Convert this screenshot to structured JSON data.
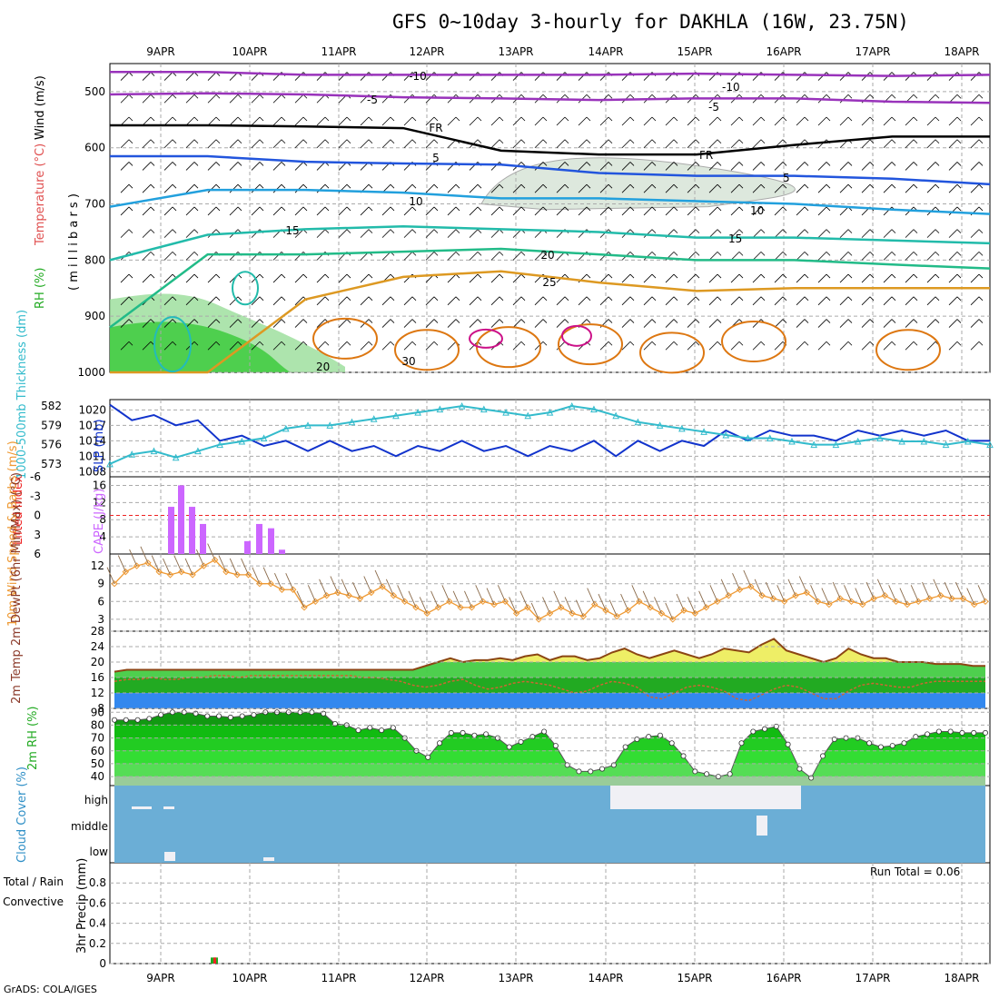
{
  "title": "GFS 0~10day 3-hourly for DAKHLA (16W, 23.75N)",
  "footer": "GrADS: COLA/IGES",
  "colors": {
    "grid": "#aaaaaa",
    "wind": "#000000",
    "rh_dark": "#22cc22",
    "rh_light": "#99dd99",
    "cape": "#cc66ff",
    "lifted": "#ee2222",
    "slp": "#1133cc",
    "thick": "#33bbcc",
    "wind10": "#ee9933",
    "barb10": "#8a6a4a",
    "temp2m": "#8b4513",
    "dewpt": "#cc6633",
    "cloud_bg": "#6baed6",
    "cloud_fill": "#f0f0f5"
  },
  "chart_data": [
    {
      "type": "heatmap",
      "panel": "upper-air cross-section",
      "ylabel_parts": [
        "RH (%)",
        "Temperature (°C)",
        "Wind (m/s)"
      ],
      "ylabel2": "( m i l l i b a r s )",
      "x_ticks": [
        "9APR",
        "10APR",
        "11APR",
        "12APR",
        "13APR",
        "14APR",
        "15APR",
        "16APR",
        "17APR",
        "18APR"
      ],
      "y_ticks": [
        500,
        600,
        700,
        800,
        900,
        1000
      ],
      "ylim": [
        1000,
        450
      ],
      "isotherm_labels": [
        {
          "text": "-10",
          "color": "#9933bb"
        },
        {
          "text": "-5",
          "color": "#9933bb"
        },
        {
          "text": "FR",
          "color": "#000000"
        },
        {
          "text": "5",
          "color": "#2255dd"
        },
        {
          "text": "10",
          "color": "#22a0dd"
        },
        {
          "text": "15",
          "color": "#22bbaa"
        },
        {
          "text": "20",
          "color": "#22bb88"
        },
        {
          "text": "25",
          "color": "#dd9922"
        },
        {
          "text": "30",
          "color": "#dd7711"
        }
      ],
      "isotherms": [
        {
          "temp": -10,
          "p": [
            465,
            465,
            470,
            470,
            470,
            470,
            468,
            470,
            472,
            470
          ]
        },
        {
          "temp": -5,
          "p": [
            505,
            503,
            505,
            510,
            512,
            515,
            512,
            512,
            518,
            520
          ]
        },
        {
          "temp": 0,
          "p": [
            560,
            560,
            562,
            565,
            605,
            612,
            612,
            595,
            580,
            580
          ]
        },
        {
          "temp": 5,
          "p": [
            615,
            615,
            625,
            628,
            630,
            645,
            650,
            650,
            655,
            665
          ]
        },
        {
          "temp": 10,
          "p": [
            705,
            675,
            675,
            680,
            690,
            690,
            695,
            700,
            710,
            718
          ]
        },
        {
          "temp": 15,
          "p": [
            800,
            755,
            745,
            740,
            745,
            750,
            760,
            760,
            765,
            770
          ]
        },
        {
          "temp": 20,
          "p": [
            920,
            790,
            790,
            785,
            780,
            790,
            800,
            800,
            808,
            815
          ]
        },
        {
          "temp": 25,
          "p": [
            1000,
            1000,
            870,
            830,
            820,
            840,
            855,
            850,
            850,
            850
          ]
        }
      ]
    },
    {
      "type": "line",
      "panel": "SLP and thickness",
      "ylabel_left": "1000-500mb Thickness (dm)",
      "ylabel_right": "SLP (mb)",
      "y_ticks_left": [
        573,
        576,
        579,
        582
      ],
      "y_ticks_right": [
        1008,
        1011,
        1014,
        1017,
        1020
      ],
      "series": [
        {
          "values": [
            1021,
            1018,
            1019,
            1017,
            1018,
            1014,
            1015,
            1013,
            1014,
            1012,
            1014,
            1012,
            1013,
            1011,
            1013,
            1012,
            1014,
            1012,
            1013,
            1011,
            1013,
            1012,
            1014,
            1011,
            1014,
            1012,
            1014,
            1013,
            1016,
            1014,
            1016,
            1015,
            1015,
            1014,
            1016,
            1015,
            1016,
            1015,
            1016,
            1014,
            1014
          ]
        },
        {
          "values": [
            573,
            574.5,
            575,
            574,
            575,
            576,
            576.5,
            577,
            578.5,
            579,
            579,
            579.5,
            580,
            580.5,
            581,
            581.5,
            582,
            581.5,
            581,
            580.5,
            581,
            582,
            581.5,
            580.5,
            579.5,
            579,
            578.5,
            578,
            577.5,
            577,
            577,
            576.5,
            576,
            576,
            576.5,
            577,
            576.5,
            576.5,
            576,
            576.5,
            576
          ]
        }
      ]
    },
    {
      "type": "bar",
      "panel": "CAPE and Lifted Index",
      "ylabel_left": "Lifted Index",
      "ylabel_right": "CAPE (J/kg)",
      "y_ticks_left": [
        "-6",
        "-3",
        "0",
        "3",
        "6"
      ],
      "y_ticks_right": [
        4,
        8,
        12,
        16
      ],
      "categories": [
        "9.1",
        "9.25",
        "9.37",
        "9.5",
        "10.1",
        "10.25",
        "10.37",
        "10.5"
      ],
      "values": [
        11,
        16,
        11,
        7,
        3,
        7,
        6,
        1
      ]
    },
    {
      "type": "line",
      "panel": "10m Wind",
      "ylabel": "10m Wind Speed & Barbs (m/s)",
      "y_ticks": [
        3,
        6,
        9,
        12
      ],
      "ylim": [
        1,
        14
      ],
      "values": [
        9,
        11,
        12,
        12.5,
        11,
        10.5,
        11,
        10.5,
        12,
        13,
        11,
        10.5,
        10.5,
        9,
        9,
        8,
        8,
        5,
        6,
        7,
        7.5,
        7,
        6.5,
        7.5,
        8.5,
        7,
        6,
        5,
        4,
        5,
        6,
        5,
        5,
        6,
        5.5,
        6,
        4,
        5,
        3,
        4,
        5,
        4,
        3.5,
        5.5,
        4.5,
        3.5,
        4.5,
        6,
        5,
        4,
        3,
        4.5,
        4,
        5,
        6,
        7,
        8,
        8.5,
        7,
        6.5,
        6,
        7,
        7.5,
        6,
        5.5,
        6.5,
        6,
        5.5,
        6.5,
        7,
        6,
        5.5,
        6,
        6.5,
        7,
        6.5,
        6.5,
        5.5,
        6
      ]
    },
    {
      "type": "area",
      "panel": "2m Temp",
      "ylabel": "2m Temp 2m DewPt (6hr Min/Max) (°C)",
      "y_ticks": [
        8,
        12,
        16,
        20,
        24,
        28
      ],
      "ylim": [
        8,
        28
      ],
      "series": [
        {
          "values": [
            17.5,
            18,
            18,
            18,
            18,
            18,
            18,
            18,
            18,
            18,
            18,
            18,
            18,
            18,
            18,
            18,
            18,
            18,
            18,
            18,
            18,
            18,
            18,
            18,
            18,
            19,
            20,
            21,
            20,
            20.5,
            20.5,
            21,
            20.5,
            21.5,
            22,
            20.5,
            21.5,
            21.5,
            20.5,
            21,
            22.5,
            23.5,
            22,
            21,
            22,
            23,
            22,
            21,
            22,
            23.5,
            23,
            22.5,
            24.5,
            26,
            23,
            22,
            21,
            20,
            21,
            23.5,
            22,
            21,
            21,
            20,
            20,
            20,
            19.5,
            19.5,
            19.5,
            19,
            19
          ]
        },
        {
          "values": [
            15,
            15.5,
            15.5,
            16,
            15.5,
            15.5,
            16,
            16,
            16.5,
            16.5,
            16,
            16.5,
            16.5,
            16.5,
            16.5,
            16.5,
            16.5,
            16.5,
            16.5,
            16.5,
            16,
            16,
            15.5,
            15,
            14,
            13.5,
            14,
            15,
            15.5,
            14,
            13,
            13.5,
            14.5,
            15,
            14.5,
            14,
            13,
            12,
            12.5,
            14,
            15,
            14.5,
            13.5,
            11,
            10.5,
            12,
            13.5,
            14,
            13.5,
            12.5,
            10.5,
            10,
            11.5,
            13,
            14,
            13.5,
            12,
            10.5,
            10.5,
            12.5,
            14,
            14.5,
            14,
            13.5,
            13.5,
            14.5,
            15,
            15,
            15,
            15,
            15
          ]
        }
      ]
    },
    {
      "type": "area",
      "panel": "2m RH",
      "ylabel": "2m RH (%)",
      "y_ticks": [
        40,
        50,
        60,
        70,
        80,
        90
      ],
      "ylim": [
        33,
        93
      ],
      "values": [
        84,
        84,
        84,
        85,
        88,
        90,
        90,
        89,
        87,
        87,
        86,
        87,
        88,
        90,
        90,
        90,
        90,
        90,
        89,
        81,
        80,
        76,
        78,
        76,
        78,
        70,
        60,
        55,
        66,
        74,
        74,
        72,
        73,
        70,
        63,
        67,
        71,
        75,
        64,
        49,
        44,
        44,
        46,
        49,
        63,
        69,
        71,
        72,
        66,
        56,
        44,
        42,
        40,
        42,
        66,
        75,
        77,
        79,
        65,
        46,
        39,
        56,
        69,
        70,
        70,
        66,
        63,
        64,
        66,
        71,
        73,
        75,
        75,
        74,
        74,
        74
      ]
    },
    {
      "type": "heatmap",
      "panel": "Cloud Cover",
      "ylabel": "Cloud Cover (%)",
      "levels": [
        "high",
        "middle",
        "low"
      ],
      "high_cover_periods": [
        "14APR-16APR"
      ]
    },
    {
      "type": "bar",
      "panel": "3hr Precip",
      "ylabel": "3hr Precip (mm)",
      "legend": [
        "Total / Rain",
        "Convective"
      ],
      "y_ticks": [
        "0",
        "0.2",
        "0.4",
        "0.6",
        "0.8"
      ],
      "ylim": [
        0,
        1
      ],
      "run_total_label": "Run Total = 0.06",
      "categories": [
        "9APR 15Z"
      ],
      "values": [
        0.06
      ]
    }
  ]
}
